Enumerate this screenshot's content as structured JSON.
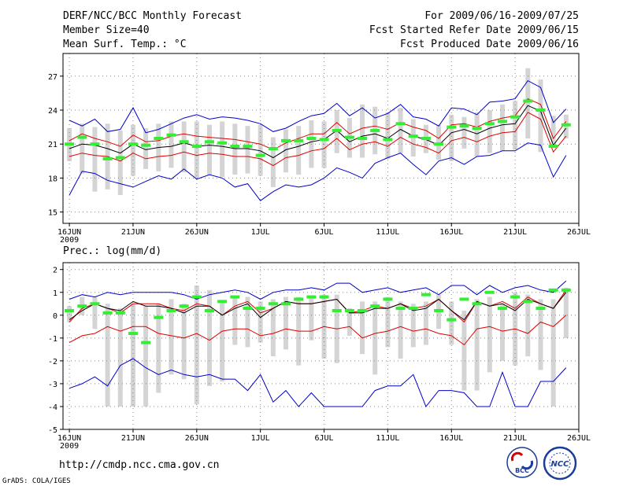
{
  "header": {
    "title_line1": "DERF/NCC/BCC Monthly Forecast",
    "title_line2": "Member Size=40",
    "title_line3": "Mean Surf. Temp.: °C",
    "right_line1": "For 2009/06/16-2009/07/25",
    "right_line2": "Fcst Started Refer Date 2009/06/15",
    "right_line3": "Fcst Produced Date 2009/06/16"
  },
  "footer": {
    "url": "http://cmdp.ncc.cma.gov.cn",
    "credit": "GrADS: COLA/IGES",
    "logo_bcc": "BCC",
    "logo_ncc": "NCC"
  },
  "colors": {
    "box": "#d4d4d4",
    "mean": "#000000",
    "spread": "#dd0000",
    "extreme": "#0000cc",
    "median": "#33ee33",
    "grid": "#888888"
  },
  "chart_data": [
    {
      "type": "line",
      "title": "Mean Surf. Temp.: °C",
      "x": [
        1,
        2,
        3,
        4,
        5,
        6,
        7,
        8,
        9,
        10,
        11,
        12,
        13,
        14,
        15,
        16,
        17,
        18,
        19,
        20,
        21,
        22,
        23,
        24,
        25,
        26,
        27,
        28,
        29,
        30,
        31,
        32,
        33,
        34,
        35,
        36,
        37,
        38,
        39,
        40
      ],
      "x_ticks": [
        {
          "day": 1,
          "label": "16JUN"
        },
        {
          "day": 6,
          "label": "21JUN"
        },
        {
          "day": 11,
          "label": "26JUN"
        },
        {
          "day": 16,
          "label": "1JUL"
        },
        {
          "day": 21,
          "label": "6JUL"
        },
        {
          "day": 26,
          "label": "11JUL"
        },
        {
          "day": 31,
          "label": "16JUL"
        },
        {
          "day": 36,
          "label": "21JUL"
        },
        {
          "day": 41,
          "label": "26JUL"
        }
      ],
      "x_sublabel": "2009",
      "xlim": [
        0.5,
        41
      ],
      "ylim": [
        14,
        29
      ],
      "y_ticks": [
        15,
        18,
        21,
        24,
        27
      ],
      "box": {
        "low": [
          19.5,
          18.4,
          16.8,
          17.0,
          16.5,
          18.2,
          18.8,
          18.6,
          18.9,
          18.5,
          18.0,
          18.3,
          18.1,
          18.3,
          18.4,
          18.2,
          17.2,
          18.5,
          18.3,
          18.9,
          18.9,
          20.2,
          19.8,
          19.8,
          20.1,
          19.7,
          20.2,
          19.9,
          20.2,
          19.6,
          19.5,
          20.6,
          19.9,
          20.2,
          20.4,
          20.5,
          21.5,
          20.3,
          21.1,
          21.5
        ],
        "high": [
          22.4,
          22.8,
          22.5,
          22.8,
          22.2,
          22.7,
          22.4,
          22.8,
          23.0,
          23.0,
          23.0,
          22.7,
          23.0,
          22.8,
          22.6,
          22.7,
          21.6,
          22.3,
          22.6,
          23.1,
          23.0,
          24.0,
          23.3,
          24.5,
          24.3,
          23.8,
          24.2,
          23.2,
          22.7,
          22.7,
          23.6,
          23.4,
          23.8,
          24.0,
          24.5,
          24.8,
          27.7,
          26.7,
          23.5,
          23.6
        ]
      },
      "series": [
        {
          "name": "max",
          "color": "#0000cc",
          "values": [
            23.1,
            22.6,
            23.2,
            22.1,
            22.3,
            24.2,
            22.0,
            22.3,
            22.8,
            23.3,
            23.6,
            23.2,
            23.4,
            23.3,
            23.1,
            22.8,
            22.1,
            22.4,
            23.0,
            23.5,
            23.7,
            24.6,
            23.5,
            24.2,
            23.3,
            23.7,
            24.5,
            23.4,
            23.2,
            22.6,
            24.2,
            24.1,
            23.6,
            24.7,
            24.8,
            25.0,
            26.6,
            26.0,
            22.9,
            24.1
          ]
        },
        {
          "name": "mean+sd",
          "color": "#dd0000",
          "values": [
            21.3,
            21.9,
            21.5,
            21.2,
            20.8,
            21.8,
            21.2,
            21.3,
            21.7,
            21.9,
            21.7,
            21.6,
            21.5,
            21.4,
            21.2,
            21.0,
            20.5,
            21.1,
            21.5,
            21.9,
            21.9,
            22.9,
            21.9,
            22.4,
            22.6,
            22.3,
            22.9,
            22.5,
            22.2,
            21.5,
            22.7,
            22.8,
            22.5,
            23.0,
            23.3,
            23.5,
            25.0,
            24.5,
            21.5,
            23.0
          ]
        },
        {
          "name": "mean",
          "color": "#000000",
          "values": [
            20.6,
            21.0,
            20.9,
            20.6,
            20.2,
            21.0,
            20.5,
            20.7,
            20.8,
            21.1,
            20.8,
            20.9,
            20.8,
            20.6,
            20.6,
            20.4,
            19.8,
            20.5,
            20.8,
            21.2,
            21.4,
            22.2,
            21.2,
            21.7,
            21.9,
            21.5,
            22.3,
            21.7,
            21.4,
            20.9,
            22.0,
            22.3,
            21.9,
            22.4,
            22.7,
            22.8,
            24.4,
            23.9,
            20.9,
            22.4
          ]
        },
        {
          "name": "mean-sd",
          "color": "#dd0000",
          "values": [
            19.9,
            20.2,
            20.0,
            19.9,
            19.5,
            20.2,
            19.7,
            19.9,
            20.0,
            20.3,
            20.0,
            20.2,
            20.1,
            19.9,
            19.9,
            19.7,
            19.1,
            19.8,
            20.0,
            20.4,
            20.6,
            21.5,
            20.5,
            21.0,
            21.2,
            20.8,
            21.6,
            21.0,
            20.7,
            20.2,
            21.3,
            21.6,
            21.2,
            21.7,
            22.0,
            22.1,
            23.8,
            23.2,
            20.3,
            21.7
          ]
        },
        {
          "name": "min",
          "color": "#0000cc",
          "values": [
            16.5,
            18.6,
            18.4,
            17.8,
            17.5,
            17.2,
            17.7,
            18.2,
            17.9,
            18.8,
            17.9,
            18.3,
            18.0,
            17.2,
            17.5,
            16.0,
            16.8,
            17.4,
            17.2,
            17.4,
            18.0,
            18.9,
            18.5,
            18.0,
            19.3,
            19.8,
            20.2,
            19.2,
            18.3,
            19.5,
            19.8,
            19.2,
            19.9,
            20.0,
            20.4,
            20.4,
            21.1,
            20.9,
            18.1,
            20.0
          ]
        }
      ],
      "median": [
        21.0,
        21.6,
        21.0,
        19.7,
        19.8,
        21.0,
        20.9,
        21.5,
        21.8,
        21.2,
        20.8,
        21.2,
        21.1,
        20.8,
        20.8,
        20.0,
        20.6,
        21.3,
        21.3,
        21.5,
        21.4,
        22.2,
        21.6,
        21.5,
        22.2,
        21.4,
        22.8,
        21.7,
        21.5,
        21.0,
        22.5,
        22.6,
        22.4,
        22.8,
        23.0,
        23.4,
        24.8,
        24.0,
        20.8,
        22.7
      ]
    },
    {
      "type": "line",
      "title": "Prec.: log(mm/d)",
      "x": [
        1,
        2,
        3,
        4,
        5,
        6,
        7,
        8,
        9,
        10,
        11,
        12,
        13,
        14,
        15,
        16,
        17,
        18,
        19,
        20,
        21,
        22,
        23,
        24,
        25,
        26,
        27,
        28,
        29,
        30,
        31,
        32,
        33,
        34,
        35,
        36,
        37,
        38,
        39,
        40
      ],
      "x_ticks": [
        {
          "day": 1,
          "label": "16JUN"
        },
        {
          "day": 6,
          "label": "21JUN"
        },
        {
          "day": 11,
          "label": "26JUN"
        },
        {
          "day": 16,
          "label": "1JUL"
        },
        {
          "day": 21,
          "label": "6JUL"
        },
        {
          "day": 26,
          "label": "11JUL"
        },
        {
          "day": 31,
          "label": "16JUL"
        },
        {
          "day": 36,
          "label": "21JUL"
        },
        {
          "day": 41,
          "label": "26JUL"
        }
      ],
      "x_sublabel": "2009",
      "xlim": [
        0.5,
        41
      ],
      "ylim": [
        -5,
        2.3
      ],
      "y_ticks": [
        -5,
        -4,
        -3,
        -2,
        -1,
        0,
        1,
        2
      ],
      "box": {
        "low": [
          -0.3,
          0.0,
          -0.6,
          -4.0,
          -4.0,
          -4.0,
          -4.0,
          -3.4,
          -2.6,
          -2.8,
          -3.9,
          -3.1,
          -2.9,
          -1.3,
          -1.4,
          -1.2,
          -1.8,
          -1.5,
          -2.2,
          -1.1,
          -1.9,
          -2.1,
          -0.9,
          -1.7,
          -2.6,
          -1.4,
          -1.9,
          -1.4,
          -1.3,
          -0.6,
          -1.3,
          -3.3,
          -3.3,
          -2.5,
          -2.0,
          -2.2,
          -1.8,
          -2.4,
          -4.0,
          -1.0
        ],
        "high": [
          0.4,
          0.8,
          0.8,
          0.5,
          0.3,
          0.5,
          0.4,
          0.5,
          0.7,
          0.5,
          1.3,
          1.1,
          0.6,
          0.8,
          0.8,
          0.6,
          0.7,
          0.8,
          0.8,
          0.8,
          0.9,
          0.9,
          0.3,
          0.6,
          0.6,
          0.8,
          0.6,
          0.5,
          0.6,
          0.9,
          0.6,
          0.2,
          0.7,
          0.8,
          0.5,
          1.0,
          0.9,
          0.7,
          0.7,
          1.2
        ]
      },
      "series": [
        {
          "name": "max",
          "color": "#0000cc",
          "values": [
            0.7,
            0.9,
            0.8,
            1.0,
            0.9,
            1.0,
            1.0,
            1.0,
            1.0,
            0.9,
            0.7,
            0.9,
            1.0,
            1.1,
            1.0,
            0.7,
            1.0,
            1.1,
            1.1,
            1.2,
            1.1,
            1.4,
            1.4,
            1.0,
            1.1,
            1.2,
            1.0,
            1.1,
            1.2,
            0.9,
            1.3,
            1.3,
            0.9,
            1.3,
            1.0,
            1.2,
            1.3,
            1.1,
            1.0,
            1.5
          ]
        },
        {
          "name": "mean+sd",
          "color": "#dd0000",
          "values": [
            -0.3,
            0.3,
            0.5,
            0.3,
            0.1,
            0.5,
            0.5,
            0.5,
            0.3,
            0.2,
            0.5,
            0.4,
            0.0,
            0.4,
            0.6,
            0.1,
            0.3,
            0.6,
            0.5,
            0.5,
            0.6,
            0.7,
            0.1,
            0.2,
            0.4,
            0.3,
            0.5,
            0.3,
            0.4,
            0.7,
            0.2,
            -0.3,
            0.6,
            0.4,
            0.6,
            0.3,
            0.8,
            0.5,
            0.3,
            1.1
          ]
        },
        {
          "name": "mean",
          "color": "#000000",
          "values": [
            -0.2,
            0.2,
            0.5,
            0.3,
            0.2,
            0.6,
            0.4,
            0.4,
            0.3,
            0.1,
            0.4,
            0.4,
            0.0,
            0.3,
            0.5,
            -0.1,
            0.3,
            0.6,
            0.5,
            0.5,
            0.6,
            0.7,
            0.1,
            0.1,
            0.3,
            0.3,
            0.5,
            0.2,
            0.3,
            0.7,
            0.2,
            -0.2,
            0.6,
            0.4,
            0.5,
            0.2,
            0.7,
            0.5,
            0.3,
            1.0
          ]
        },
        {
          "name": "mean-sd",
          "color": "#dd0000",
          "values": [
            -1.2,
            -0.9,
            -0.8,
            -0.5,
            -0.7,
            -0.5,
            -0.5,
            -0.8,
            -0.9,
            -1.0,
            -0.8,
            -1.1,
            -0.7,
            -0.6,
            -0.6,
            -0.9,
            -0.8,
            -0.6,
            -0.7,
            -0.7,
            -0.5,
            -0.6,
            -0.5,
            -1.0,
            -0.8,
            -0.7,
            -0.5,
            -0.7,
            -0.6,
            -0.8,
            -0.9,
            -1.3,
            -0.6,
            -0.5,
            -0.7,
            -0.6,
            -0.8,
            -0.3,
            -0.5,
            0.0
          ]
        },
        {
          "name": "min",
          "color": "#0000cc",
          "values": [
            -3.2,
            -3.0,
            -2.7,
            -3.1,
            -2.2,
            -1.9,
            -2.3,
            -2.6,
            -2.4,
            -2.6,
            -2.7,
            -2.6,
            -2.8,
            -2.8,
            -3.3,
            -2.6,
            -3.8,
            -3.3,
            -4.0,
            -3.4,
            -4.0,
            -4.0,
            -4.0,
            -4.0,
            -3.3,
            -3.1,
            -3.1,
            -2.6,
            -4.0,
            -3.3,
            -3.3,
            -3.4,
            -4.0,
            -4.0,
            -2.5,
            -4.0,
            -4.0,
            -2.9,
            -2.9,
            -2.3
          ]
        }
      ],
      "median": [
        0.2,
        0.4,
        0.5,
        0.1,
        0.1,
        -0.8,
        -1.2,
        -0.1,
        0.2,
        0.4,
        0.8,
        0.2,
        0.6,
        0.8,
        0.3,
        0.3,
        0.5,
        0.5,
        0.7,
        0.8,
        0.8,
        0.2,
        0.2,
        0.2,
        0.4,
        0.7,
        0.3,
        0.3,
        0.9,
        0.2,
        -0.2,
        0.7,
        0.5,
        1.0,
        0.3,
        0.8,
        0.6,
        0.3,
        1.1,
        1.1
      ]
    }
  ]
}
